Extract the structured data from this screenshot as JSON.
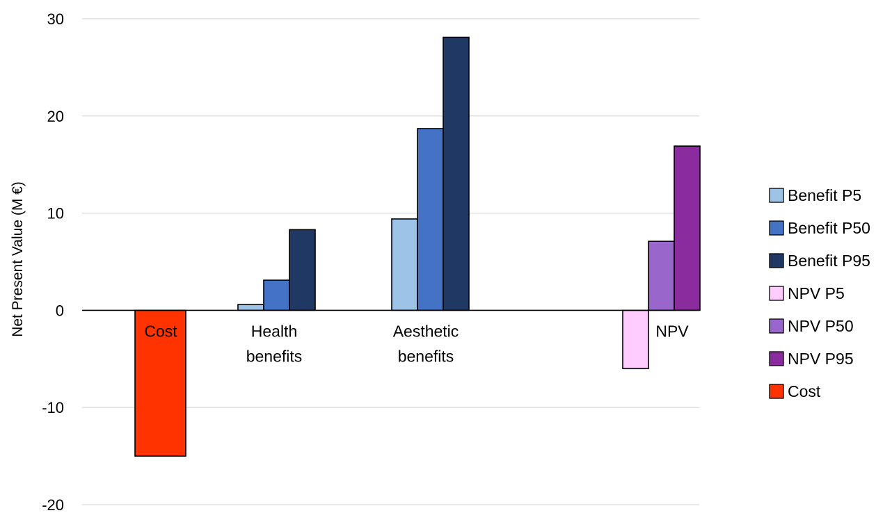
{
  "chart_data": {
    "type": "bar",
    "title": "",
    "ylabel": "Net Present Value (M €)",
    "xlabel": "",
    "ylim": [
      -20,
      30
    ],
    "yticks": [
      30,
      20,
      10,
      0,
      -10,
      -20
    ],
    "grid": true,
    "legend_position": "right",
    "groups": [
      {
        "label": "Cost",
        "bars": [
          {
            "series": "Cost",
            "value": -15.0
          }
        ]
      },
      {
        "label": "Health benefits",
        "label_lines": [
          "Health",
          "benefits"
        ],
        "bars": [
          {
            "series": "Benefit P5",
            "value": 0.6
          },
          {
            "series": "Benefit P50",
            "value": 3.1
          },
          {
            "series": "Benefit P95",
            "value": 8.3
          }
        ]
      },
      {
        "label": "Aesthetic benefits",
        "label_lines": [
          "Aesthetic",
          "benefits"
        ],
        "bars": [
          {
            "series": "Benefit P5",
            "value": 9.4
          },
          {
            "series": "Benefit P50",
            "value": 18.7
          },
          {
            "series": "Benefit P95",
            "value": 28.1
          }
        ]
      },
      {
        "label": "NPV",
        "bars": [
          {
            "series": "NPV P5",
            "value": -6.0
          },
          {
            "series": "NPV P50",
            "value": 7.1
          },
          {
            "series": "NPV P95",
            "value": 16.9
          }
        ]
      }
    ],
    "series": [
      {
        "name": "Benefit P5",
        "color": "#9dc3e6"
      },
      {
        "name": "Benefit P50",
        "color": "#4472c4"
      },
      {
        "name": "Benefit P95",
        "color": "#203864"
      },
      {
        "name": "NPV P5",
        "color": "#ffccff"
      },
      {
        "name": "NPV P50",
        "color": "#9966cc"
      },
      {
        "name": "NPV P95",
        "color": "#8a2c9e"
      },
      {
        "name": "Cost",
        "color": "#ff3300"
      }
    ]
  }
}
